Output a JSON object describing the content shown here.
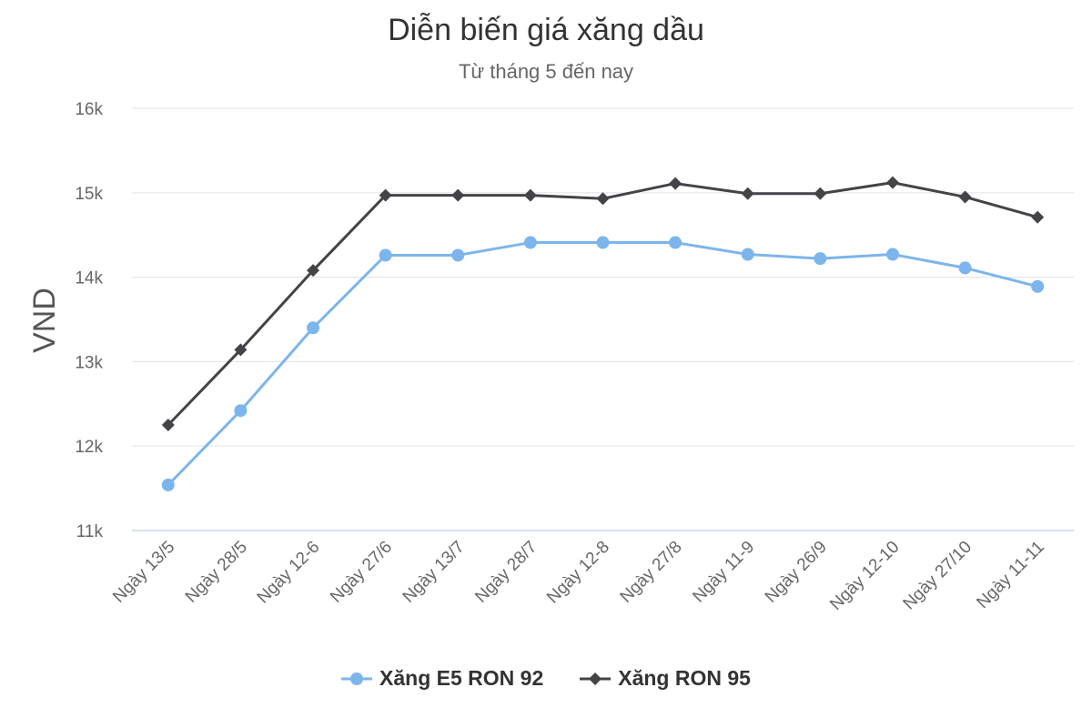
{
  "chart_data": {
    "type": "line",
    "title": "Diễn biến giá xăng dầu",
    "subtitle": "Từ tháng 5 đến nay",
    "ylabel": "VND",
    "ylim": [
      11000,
      16000
    ],
    "yticks": [
      11000,
      12000,
      13000,
      14000,
      15000,
      16000
    ],
    "ytick_labels": [
      "11k",
      "12k",
      "13k",
      "14k",
      "15k",
      "16k"
    ],
    "categories": [
      "Ngày 13/5",
      "Ngày 28/5",
      "Ngày 12-6",
      "Ngày 27/6",
      "Ngày 13/7",
      "Ngày 28/7",
      "Ngày 12-8",
      "Ngày 27/8",
      "Ngày 11-9",
      "Ngày 26/9",
      "Ngày 12-10",
      "Ngày 27/10",
      "Ngày 11-11"
    ],
    "series": [
      {
        "name": "Xăng E5 RON 92",
        "color": "#7cb5ec",
        "marker": "circle",
        "values": [
          11540,
          12420,
          13400,
          14260,
          14260,
          14410,
          14410,
          14410,
          14270,
          14220,
          14270,
          14110,
          13890
        ]
      },
      {
        "name": "Xăng RON 95",
        "color": "#434348",
        "marker": "diamond",
        "values": [
          12250,
          13140,
          14080,
          14970,
          14970,
          14970,
          14930,
          15110,
          14990,
          14990,
          15120,
          14950,
          14710
        ]
      }
    ],
    "grid": true,
    "legend": "bottom-center"
  }
}
